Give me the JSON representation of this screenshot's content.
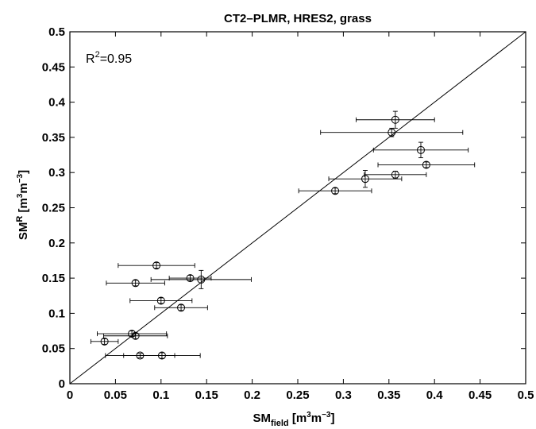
{
  "chart_data": {
    "type": "scatter",
    "title": "CT2–PLMR, HRES2, grass",
    "xlabel": {
      "base": "SM",
      "sub": "field",
      "unit_prefix": " [m",
      "unit_sup1": "3",
      "unit_mid": "m",
      "unit_sup2": "−3",
      "unit_suffix": "]"
    },
    "ylabel": {
      "base": "SM",
      "sup": "R",
      "unit_prefix": " [m",
      "unit_sup1": "3",
      "unit_mid": "m",
      "unit_sup2": "−3",
      "unit_suffix": "]"
    },
    "annotation": {
      "base": "R",
      "sup": "2",
      "rest": "=0.95"
    },
    "xlim": [
      0,
      0.5
    ],
    "ylim": [
      0,
      0.5
    ],
    "x_ticks": [
      "0",
      "0.05",
      "0.1",
      "0.15",
      "0.2",
      "0.25",
      "0.3",
      "0.35",
      "0.4",
      "0.45",
      "0.5"
    ],
    "y_ticks": [
      "0",
      "0.05",
      "0.1",
      "0.15",
      "0.2",
      "0.25",
      "0.3",
      "0.35",
      "0.4",
      "0.45",
      "0.5"
    ],
    "grid": false,
    "reference_line": {
      "type": "1:1",
      "from": [
        0,
        0
      ],
      "to": [
        0.5,
        0.5
      ]
    },
    "points": [
      {
        "x": 0.357,
        "y": 0.375,
        "xerr": 0.043,
        "yerr": 0.012
      },
      {
        "x": 0.353,
        "y": 0.357,
        "xerr": 0.078,
        "yerr": 0.006
      },
      {
        "x": 0.385,
        "y": 0.332,
        "xerr": 0.052,
        "yerr": 0.011
      },
      {
        "x": 0.391,
        "y": 0.311,
        "xerr": 0.053,
        "yerr": 0.004
      },
      {
        "x": 0.357,
        "y": 0.297,
        "xerr": 0.034,
        "yerr": 0.005
      },
      {
        "x": 0.324,
        "y": 0.291,
        "xerr": 0.04,
        "yerr": 0.012
      },
      {
        "x": 0.291,
        "y": 0.274,
        "xerr": 0.04,
        "yerr": 0.004
      },
      {
        "x": 0.095,
        "y": 0.168,
        "xerr": 0.042,
        "yerr": 0.004
      },
      {
        "x": 0.072,
        "y": 0.143,
        "xerr": 0.032,
        "yerr": 0.004
      },
      {
        "x": 0.132,
        "y": 0.15,
        "xerr": 0.023,
        "yerr": 0.004
      },
      {
        "x": 0.144,
        "y": 0.148,
        "xerr": 0.055,
        "yerr": 0.013
      },
      {
        "x": 0.1,
        "y": 0.118,
        "xerr": 0.034,
        "yerr": 0.004
      },
      {
        "x": 0.122,
        "y": 0.108,
        "xerr": 0.029,
        "yerr": 0.004
      },
      {
        "x": 0.068,
        "y": 0.071,
        "xerr": 0.038,
        "yerr": 0.004
      },
      {
        "x": 0.072,
        "y": 0.068,
        "xerr": 0.035,
        "yerr": 0.004
      },
      {
        "x": 0.038,
        "y": 0.06,
        "xerr": 0.015,
        "yerr": 0.004
      },
      {
        "x": 0.077,
        "y": 0.04,
        "xerr": 0.038,
        "yerr": 0.003
      },
      {
        "x": 0.101,
        "y": 0.04,
        "xerr": 0.042,
        "yerr": 0.004
      }
    ]
  }
}
